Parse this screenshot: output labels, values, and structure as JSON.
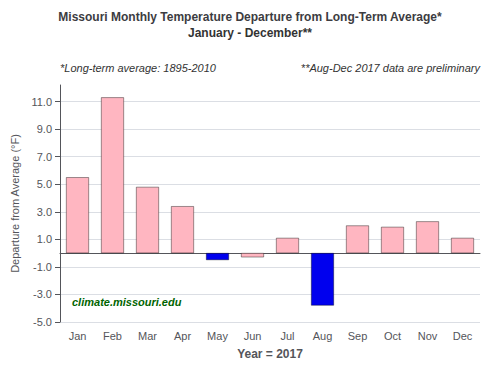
{
  "chart_data": {
    "type": "bar",
    "title": "Missouri Monthly Temperature Departure from Long-Term Average*",
    "subtitle": "January - December**",
    "annotations": [
      "*Long-term average: 1895-2010",
      "**Aug-Dec 2017 data are preliminary",
      "climate.missouri.edu"
    ],
    "xlabel": "Year = 2017",
    "ylabel": "Departure from Average (°F)",
    "categories": [
      "Jan",
      "Feb",
      "Mar",
      "Apr",
      "May",
      "Jun",
      "Jul",
      "Aug",
      "Sep",
      "Oct",
      "Nov",
      "Dec"
    ],
    "values": [
      5.5,
      11.3,
      4.8,
      3.4,
      -0.5,
      -0.3,
      1.1,
      -3.8,
      2.0,
      1.9,
      2.3,
      1.1
    ],
    "colors": [
      "#FFB6C1",
      "#FFB6C1",
      "#FFB6C1",
      "#FFB6C1",
      "#0000EE",
      "#FFB6C1",
      "#FFB6C1",
      "#0000EE",
      "#FFB6C1",
      "#FFB6C1",
      "#FFB6C1",
      "#FFB6C1"
    ],
    "ylim": [
      -5.0,
      12.2
    ],
    "yticks": [
      {
        "value": -5.0,
        "label": "-5.0"
      },
      {
        "value": -3.0,
        "label": "-3.0"
      },
      {
        "value": -1.0,
        "label": "-1.0"
      },
      {
        "value": 1.0,
        "label": "1.0"
      },
      {
        "value": 3.0,
        "label": "3.0"
      },
      {
        "value": 5.0,
        "label": "5.0"
      },
      {
        "value": 7.0,
        "label": "7.0"
      },
      {
        "value": 9.0,
        "label": "9.0"
      },
      {
        "value": 11.0,
        "label": "11.0"
      }
    ],
    "grid": true
  }
}
